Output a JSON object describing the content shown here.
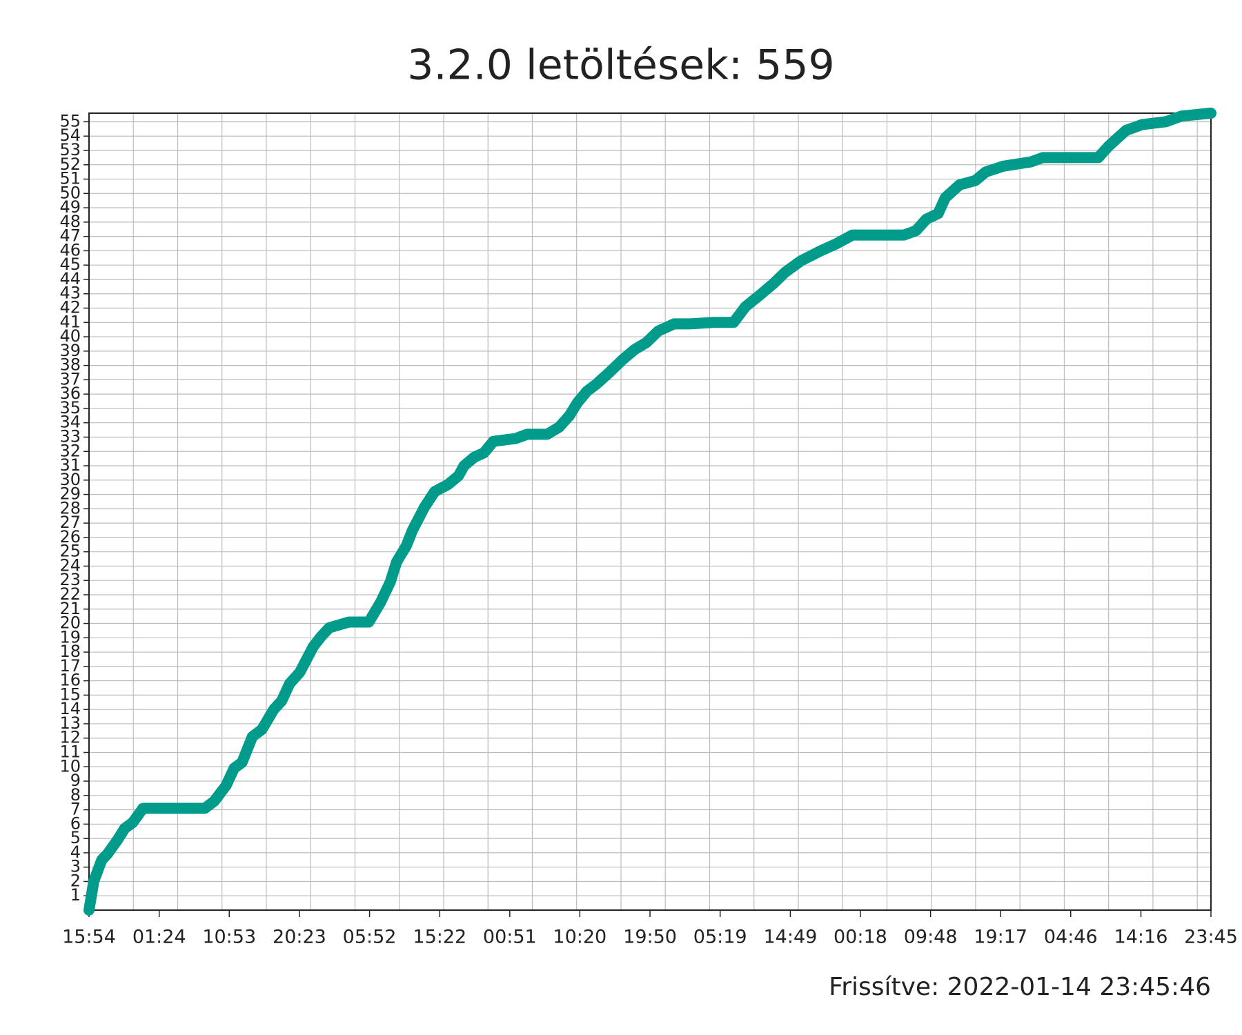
{
  "chart_data": {
    "type": "line",
    "title": "3.2.0 letöltések: 559",
    "footer": "Frissítve: 2022-01-14 23:45:46",
    "xlim": [
      0,
      151.85
    ],
    "ylim": [
      0,
      55.6
    ],
    "grid": true,
    "xgrid_step": 6,
    "xticks": [
      {
        "value": 0,
        "label": "15:54"
      },
      {
        "value": 9.5,
        "label": "01:24"
      },
      {
        "value": 18.98,
        "label": "10:53"
      },
      {
        "value": 28.48,
        "label": "20:23"
      },
      {
        "value": 37.97,
        "label": "05:52"
      },
      {
        "value": 47.47,
        "label": "15:22"
      },
      {
        "value": 56.95,
        "label": "00:51"
      },
      {
        "value": 66.43,
        "label": "10:20"
      },
      {
        "value": 75.93,
        "label": "19:50"
      },
      {
        "value": 85.42,
        "label": "05:19"
      },
      {
        "value": 94.92,
        "label": "14:49"
      },
      {
        "value": 104.4,
        "label": "00:18"
      },
      {
        "value": 113.9,
        "label": "09:48"
      },
      {
        "value": 123.38,
        "label": "19:17"
      },
      {
        "value": 132.87,
        "label": "04:46"
      },
      {
        "value": 142.37,
        "label": "14:16"
      },
      {
        "value": 151.85,
        "label": "23:45"
      }
    ],
    "yticks": [
      1,
      2,
      3,
      4,
      5,
      6,
      7,
      8,
      9,
      10,
      11,
      12,
      13,
      14,
      15,
      16,
      17,
      18,
      19,
      20,
      21,
      22,
      23,
      24,
      25,
      26,
      27,
      28,
      29,
      30,
      31,
      32,
      33,
      34,
      35,
      36,
      37,
      38,
      39,
      40,
      41,
      42,
      43,
      44,
      45,
      46,
      47,
      48,
      49,
      50,
      51,
      52,
      53,
      54,
      55
    ],
    "series": [
      {
        "color": "#009b8a",
        "x": [
          0,
          0.64,
          1.72,
          2.47,
          3.86,
          4.83,
          5.9,
          7.3,
          9.44,
          15.67,
          16.95,
          18.56,
          19.64,
          20.71,
          22.11,
          23.4,
          25.01,
          26.08,
          27.15,
          28.54,
          30.37,
          31.44,
          32.52,
          35.2,
          37.88,
          39.49,
          40.78,
          41.64,
          42.93,
          43.78,
          45.39,
          46.79,
          48.61,
          50.01,
          50.76,
          52.15,
          53.44,
          54.73,
          57.73,
          59.34,
          62.03,
          63.64,
          65.03,
          66.1,
          67.39,
          68.68,
          70.4,
          72.22,
          73.83,
          75.44,
          77.05,
          79.19,
          81.34,
          84.56,
          87.24,
          88.85,
          90.78,
          92.61,
          94.22,
          96.36,
          99.05,
          101.19,
          103.34,
          110.31,
          111.92,
          113.32,
          114.93,
          115.89,
          117.83,
          119.97,
          121.37,
          123.73,
          127.48,
          129.09,
          136.6,
          138,
          140.36,
          142.51,
          145.73,
          147.87,
          151.85
        ],
        "values": [
          0,
          2,
          3.5,
          3.9,
          4.9,
          5.7,
          6.1,
          7.1,
          7.1,
          7.1,
          7.6,
          8.7,
          9.9,
          10.3,
          12.1,
          12.6,
          14,
          14.6,
          15.8,
          16.6,
          18.4,
          19.1,
          19.7,
          20.1,
          20.1,
          21.5,
          22.9,
          24.3,
          25.4,
          26.5,
          28.1,
          29.2,
          29.7,
          30.3,
          31,
          31.6,
          31.9,
          32.7,
          32.9,
          33.2,
          33.2,
          33.7,
          34.5,
          35.4,
          36.2,
          36.7,
          37.5,
          38.4,
          39.1,
          39.6,
          40.4,
          40.9,
          40.9,
          41,
          41,
          42.1,
          42.9,
          43.7,
          44.5,
          45.3,
          46,
          46.5,
          47.1,
          47.1,
          47.4,
          48.2,
          48.6,
          49.7,
          50.6,
          50.9,
          51.5,
          51.9,
          52.2,
          52.5,
          52.5,
          53.3,
          54.4,
          54.8,
          55,
          55.4,
          55.6
        ]
      }
    ]
  }
}
